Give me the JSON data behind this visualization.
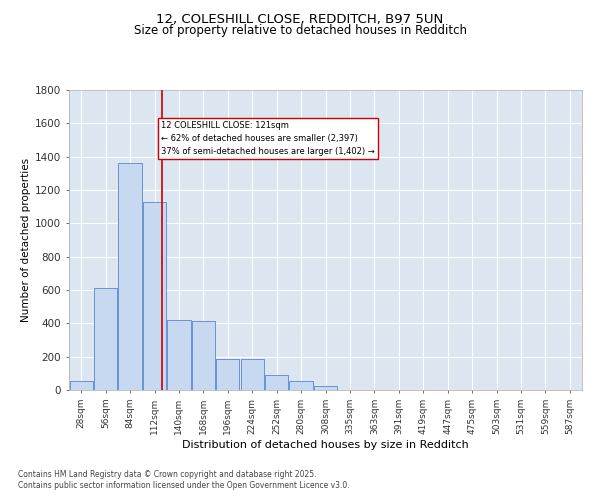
{
  "title_line1": "12, COLESHILL CLOSE, REDDITCH, B97 5UN",
  "title_line2": "Size of property relative to detached houses in Redditch",
  "xlabel": "Distribution of detached houses by size in Redditch",
  "ylabel": "Number of detached properties",
  "categories": [
    "28sqm",
    "56sqm",
    "84sqm",
    "112sqm",
    "140sqm",
    "168sqm",
    "196sqm",
    "224sqm",
    "252sqm",
    "280sqm",
    "308sqm",
    "335sqm",
    "363sqm",
    "391sqm",
    "419sqm",
    "447sqm",
    "475sqm",
    "503sqm",
    "531sqm",
    "559sqm",
    "587sqm"
  ],
  "values": [
    55,
    610,
    1360,
    1130,
    420,
    415,
    185,
    185,
    90,
    55,
    25,
    0,
    0,
    0,
    0,
    0,
    0,
    0,
    0,
    0,
    0
  ],
  "bar_color": "#c6d9f0",
  "bar_edge_color": "#4472c4",
  "background_color": "#dce6f1",
  "grid_color": "#ffffff",
  "vline_x": 3.32,
  "vline_color": "#cc0000",
  "annotation_text": "12 COLESHILL CLOSE: 121sqm\n← 62% of detached houses are smaller (2,397)\n37% of semi-detached houses are larger (1,402) →",
  "annotation_box_color": "#ffffff",
  "annotation_box_edge": "#cc0000",
  "ylim": [
    0,
    1800
  ],
  "yticks": [
    0,
    200,
    400,
    600,
    800,
    1000,
    1200,
    1400,
    1600,
    1800
  ],
  "footer_line1": "Contains HM Land Registry data © Crown copyright and database right 2025.",
  "footer_line2": "Contains public sector information licensed under the Open Government Licence v3.0."
}
